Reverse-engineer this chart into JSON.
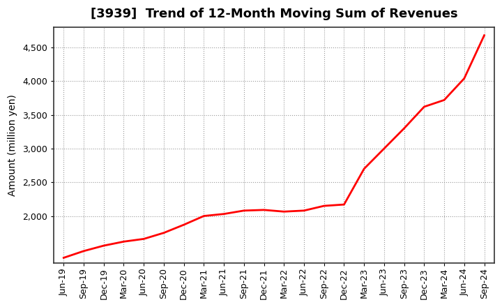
{
  "title": "[3939]  Trend of 12-Month Moving Sum of Revenues",
  "ylabel": "Amount (million yen)",
  "line_color": "#FF0000",
  "background_color": "#FFFFFF",
  "grid_color": "#999999",
  "x_labels": [
    "Jun-19",
    "Sep-19",
    "Dec-19",
    "Mar-20",
    "Jun-20",
    "Sep-20",
    "Dec-20",
    "Mar-21",
    "Jun-21",
    "Sep-21",
    "Dec-21",
    "Mar-22",
    "Jun-22",
    "Sep-22",
    "Dec-22",
    "Mar-23",
    "Jun-23",
    "Sep-23",
    "Dec-23",
    "Mar-24",
    "Jun-24",
    "Sep-24"
  ],
  "x_values": [
    0,
    1,
    2,
    3,
    4,
    5,
    6,
    7,
    8,
    9,
    10,
    11,
    12,
    13,
    14,
    15,
    16,
    17,
    18,
    19,
    20,
    21
  ],
  "y_values": [
    1380,
    1480,
    1560,
    1620,
    1660,
    1750,
    1870,
    2000,
    2030,
    2080,
    2090,
    2065,
    2080,
    2150,
    2170,
    2700,
    3000,
    3300,
    3620,
    3720,
    4040,
    4680
  ],
  "ylim": [
    1300,
    4800
  ],
  "yticks": [
    2000,
    2500,
    3000,
    3500,
    4000,
    4500
  ],
  "title_fontsize": 13,
  "label_fontsize": 10,
  "tick_fontsize": 9,
  "line_width": 2.0
}
